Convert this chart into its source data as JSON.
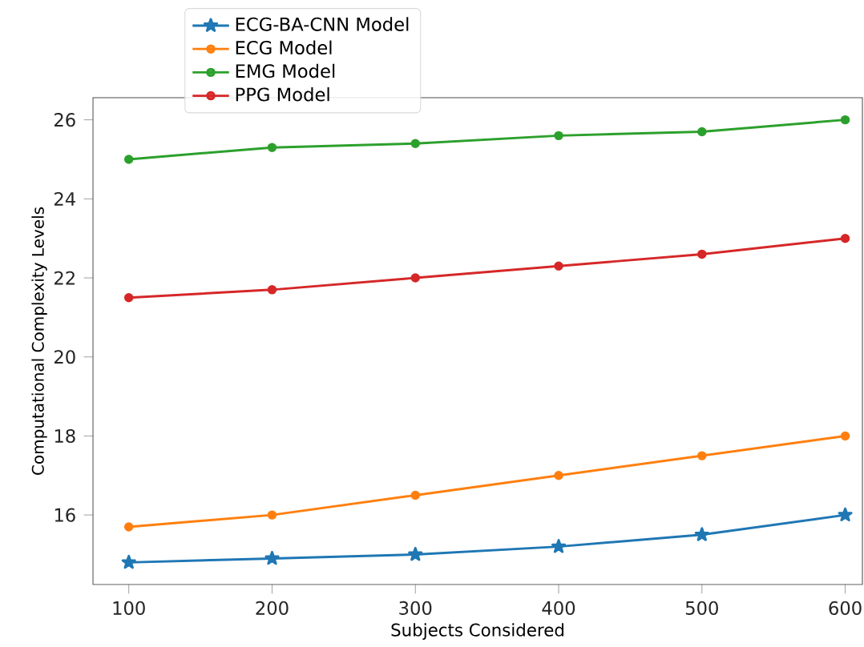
{
  "chart_data": {
    "type": "line",
    "xlabel": "Subjects Considered",
    "ylabel": "Computational Complexity Levels",
    "x": [
      100,
      200,
      300,
      400,
      500,
      600
    ],
    "xlim": [
      75,
      612
    ],
    "ylim": [
      14.24,
      26.56
    ],
    "xticks": [
      100,
      200,
      300,
      400,
      500,
      600
    ],
    "yticks": [
      16,
      18,
      20,
      22,
      24,
      26
    ],
    "legend": "top left",
    "grid": false,
    "line_style": "solid",
    "series": [
      {
        "name": "ECG-BA-CNN Model",
        "color": "#1f77b4",
        "marker": "star",
        "values": [
          14.8,
          14.9,
          15.0,
          15.2,
          15.5,
          16.0
        ]
      },
      {
        "name": "ECG Model",
        "color": "#ff7f0e",
        "marker": "circle",
        "values": [
          15.7,
          16.0,
          16.5,
          17.0,
          17.5,
          18.0
        ]
      },
      {
        "name": "EMG Model",
        "color": "#2ca02c",
        "marker": "circle",
        "values": [
          25.0,
          25.3,
          25.4,
          25.6,
          25.7,
          26.0
        ]
      },
      {
        "name": "PPG Model",
        "color": "#d62728",
        "marker": "circle",
        "values": [
          21.5,
          21.7,
          22.0,
          22.3,
          22.6,
          23.0
        ]
      }
    ]
  }
}
